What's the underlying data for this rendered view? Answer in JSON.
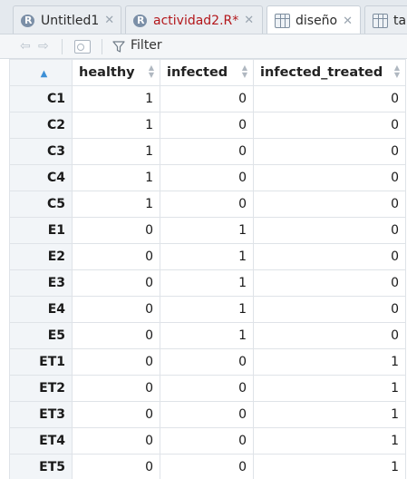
{
  "tabs": [
    {
      "label": "Untitled1",
      "icon": "r-file-icon",
      "active": false,
      "modified": false
    },
    {
      "label": "actividad2.R*",
      "icon": "r-file-icon",
      "active": false,
      "modified": true
    },
    {
      "label": "diseño",
      "icon": "data-grid-icon",
      "active": true,
      "modified": false
    },
    {
      "label": "ta",
      "icon": "data-grid-icon",
      "active": false,
      "modified": false
    }
  ],
  "toolbar": {
    "filter_label": "Filter"
  },
  "table": {
    "columns": [
      "healthy",
      "infected",
      "infected_treated"
    ],
    "rows": [
      {
        "name": "C1",
        "values": [
          "1",
          "0",
          "0"
        ]
      },
      {
        "name": "C2",
        "values": [
          "1",
          "0",
          "0"
        ]
      },
      {
        "name": "C3",
        "values": [
          "1",
          "0",
          "0"
        ]
      },
      {
        "name": "C4",
        "values": [
          "1",
          "0",
          "0"
        ]
      },
      {
        "name": "C5",
        "values": [
          "1",
          "0",
          "0"
        ]
      },
      {
        "name": "E1",
        "values": [
          "0",
          "1",
          "0"
        ]
      },
      {
        "name": "E2",
        "values": [
          "0",
          "1",
          "0"
        ]
      },
      {
        "name": "E3",
        "values": [
          "0",
          "1",
          "0"
        ]
      },
      {
        "name": "E4",
        "values": [
          "0",
          "1",
          "0"
        ]
      },
      {
        "name": "E5",
        "values": [
          "0",
          "1",
          "0"
        ]
      },
      {
        "name": "ET1",
        "values": [
          "0",
          "0",
          "1"
        ]
      },
      {
        "name": "ET2",
        "values": [
          "0",
          "0",
          "1"
        ]
      },
      {
        "name": "ET3",
        "values": [
          "0",
          "0",
          "1"
        ]
      },
      {
        "name": "ET4",
        "values": [
          "0",
          "0",
          "1"
        ]
      },
      {
        "name": "ET5",
        "values": [
          "0",
          "0",
          "1"
        ]
      }
    ]
  },
  "colors": {
    "modified_tab_text": "#b3171b",
    "sort_accent": "#3d8fd6"
  }
}
